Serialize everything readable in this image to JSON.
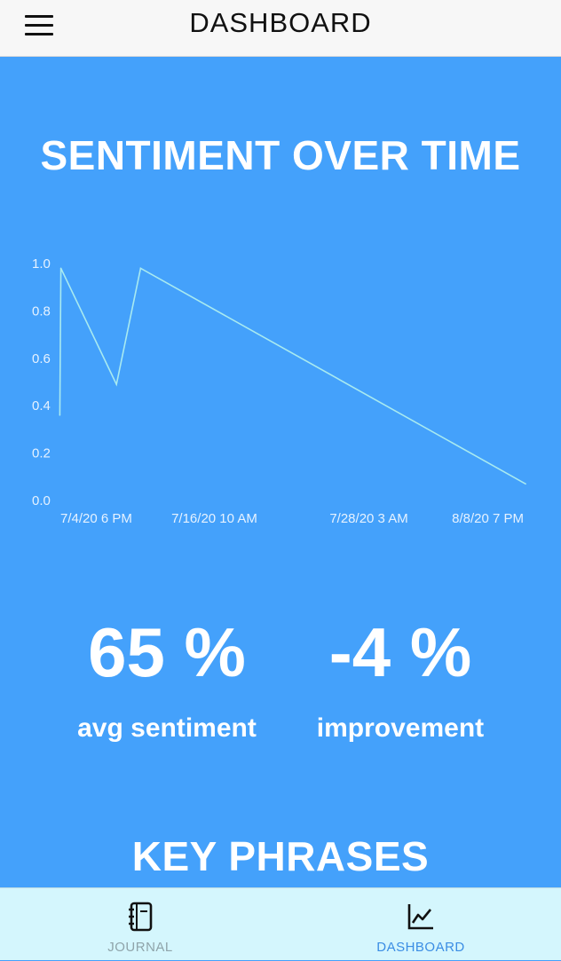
{
  "header": {
    "title": "DASHBOARD",
    "menu_icon": "hamburger-menu-icon"
  },
  "chart_section": {
    "title": "SENTIMENT OVER TIME"
  },
  "chart_data": {
    "type": "line",
    "title": "SENTIMENT OVER TIME",
    "xlabel": "",
    "ylabel": "",
    "x_type": "datetime",
    "x": [
      "2020-07-04T17:00",
      "2020-07-04T19:00",
      "2020-07-09T00:00",
      "2020-07-10T20:00",
      "2020-08-09T00:00"
    ],
    "y": [
      0.36,
      0.98,
      0.49,
      0.98,
      0.07
    ],
    "ylim": [
      0.0,
      1.0
    ],
    "y_ticks": [
      "0.0",
      "0.2",
      "0.4",
      "0.6",
      "0.8",
      "1.0"
    ],
    "x_ticks": [
      {
        "value": "2020-07-04T18:00",
        "label": "7/4/20 6 PM"
      },
      {
        "value": "2020-07-16T10:00",
        "label": "7/16/20 10 AM"
      },
      {
        "value": "2020-07-28T03:00",
        "label": "7/28/20 3 AM"
      },
      {
        "value": "2020-08-08T19:00",
        "label": "8/8/20 7 PM"
      }
    ],
    "grid": false,
    "line_color": "#a8eaf0"
  },
  "stats": {
    "avg_sentiment": {
      "value": "65 %",
      "label": "avg sentiment"
    },
    "improvement": {
      "value": "-4 %",
      "label": "improvement"
    }
  },
  "key_phrases": {
    "title": "KEY PHRASES"
  },
  "tabbar": {
    "tabs": [
      {
        "label": "JOURNAL",
        "icon": "notebook-icon",
        "active": false,
        "color": "#8fa4aa"
      },
      {
        "label": "DASHBOARD",
        "icon": "line-chart-icon",
        "active": true,
        "color": "#3b8de4"
      }
    ]
  }
}
